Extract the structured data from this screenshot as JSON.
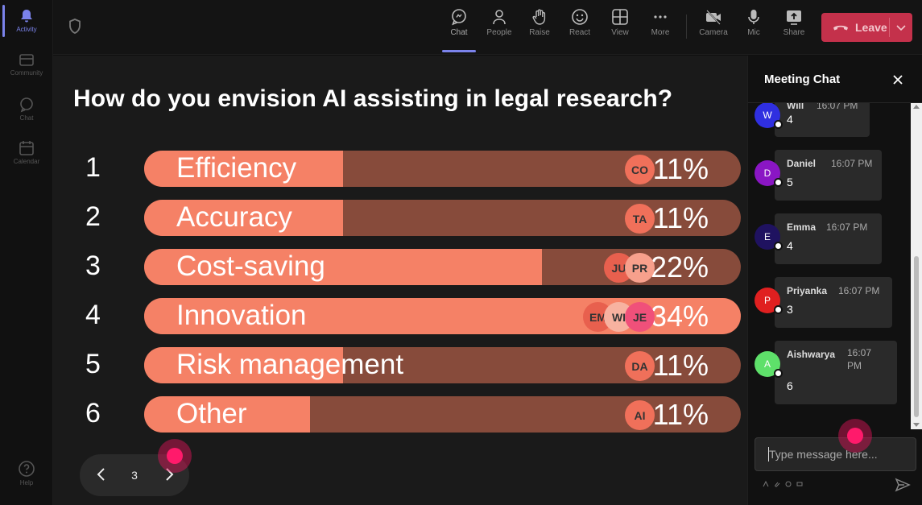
{
  "rail": {
    "items": [
      {
        "label": "Activity",
        "icon": "bell-icon",
        "active": true
      },
      {
        "label": "Community",
        "icon": "community-icon"
      },
      {
        "label": "Chat",
        "icon": "chat-icon"
      },
      {
        "label": "Calendar",
        "icon": "calendar-icon"
      }
    ],
    "help_label": "Help"
  },
  "toolbar": {
    "chat": "Chat",
    "people": "People",
    "raise": "Raise",
    "react": "React",
    "view": "View",
    "more": "More",
    "camera": "Camera",
    "mic": "Mic",
    "share": "Share",
    "leave": "Leave"
  },
  "poll": {
    "question": "How do you envision AI assisting in legal research?",
    "options": [
      {
        "num": "1",
        "label": "Efficiency",
        "pct": "11%",
        "value": 11,
        "avatars": [
          "CO"
        ]
      },
      {
        "num": "2",
        "label": "Accuracy",
        "pct": "11%",
        "value": 11,
        "avatars": [
          "TA"
        ]
      },
      {
        "num": "3",
        "label": "Cost-saving",
        "pct": "22%",
        "value": 22,
        "avatars": [
          "JU",
          "PR"
        ]
      },
      {
        "num": "4",
        "label": "Innovation",
        "pct": "34%",
        "value": 34,
        "avatars": [
          "EM",
          "WI",
          "JE"
        ]
      },
      {
        "num": "5",
        "label": "Risk management",
        "pct": "11%",
        "value": 11,
        "avatars": [
          "DA"
        ]
      },
      {
        "num": "6",
        "label": "Other",
        "pct": "11%",
        "value": 11,
        "avatars": [
          "AI"
        ]
      }
    ],
    "page": "3"
  },
  "chat": {
    "title": "Meeting Chat",
    "messages": [
      {
        "initial": "W",
        "name": "Will",
        "time": "16:07 PM",
        "text": "4",
        "color": "#2f2fe0"
      },
      {
        "initial": "D",
        "name": "Daniel",
        "time": "16:07 PM",
        "text": "5",
        "color": "#8a16c4"
      },
      {
        "initial": "E",
        "name": "Emma",
        "time": "16:07 PM",
        "text": "4",
        "color": "#1f1260"
      },
      {
        "initial": "P",
        "name": "Priyanka",
        "time": "16:07 PM",
        "text": "3",
        "color": "#e02020"
      },
      {
        "initial": "A",
        "name": "Aishwarya",
        "time": "16:07 PM",
        "text": "6",
        "color": "#5ee06a"
      }
    ],
    "input_placeholder": "Type message here..."
  },
  "colors": {
    "accent": "#7b83eb",
    "bar_fill": "#f58166",
    "bar_track": "#874b3b",
    "leave": "#c4314b",
    "highlight_dot": "#ff1a6b"
  }
}
